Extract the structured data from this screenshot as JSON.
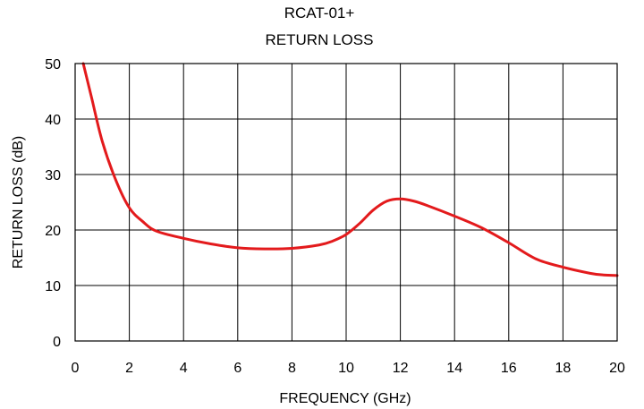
{
  "chart_data": {
    "type": "line",
    "title": "RCAT-01+",
    "subtitle": "RETURN LOSS",
    "xlabel": "FREQUENCY (GHz)",
    "ylabel": "RETURN LOSS (dB)",
    "xlim": [
      0,
      20
    ],
    "ylim": [
      0,
      50
    ],
    "xticks": [
      0,
      2,
      4,
      6,
      8,
      10,
      12,
      14,
      16,
      18,
      20
    ],
    "yticks": [
      0,
      10,
      20,
      30,
      40,
      50
    ],
    "grid": true,
    "series": [
      {
        "color": "#e31a1c",
        "x": [
          0.3,
          0.6,
          1.0,
          1.5,
          2.0,
          2.5,
          3.0,
          4.0,
          5.0,
          6.0,
          7.0,
          8.0,
          9.0,
          9.5,
          10.0,
          10.5,
          11.0,
          11.5,
          12.0,
          12.5,
          13.0,
          14.0,
          15.0,
          16.0,
          17.0,
          18.0,
          19.0,
          19.5,
          20.0
        ],
        "y": [
          50.0,
          44.0,
          36.0,
          29.0,
          24.0,
          21.5,
          19.8,
          18.5,
          17.5,
          16.8,
          16.6,
          16.7,
          17.3,
          18.0,
          19.2,
          21.2,
          23.6,
          25.2,
          25.6,
          25.2,
          24.4,
          22.5,
          20.4,
          17.7,
          14.8,
          13.3,
          12.2,
          11.9,
          11.8
        ]
      }
    ]
  }
}
